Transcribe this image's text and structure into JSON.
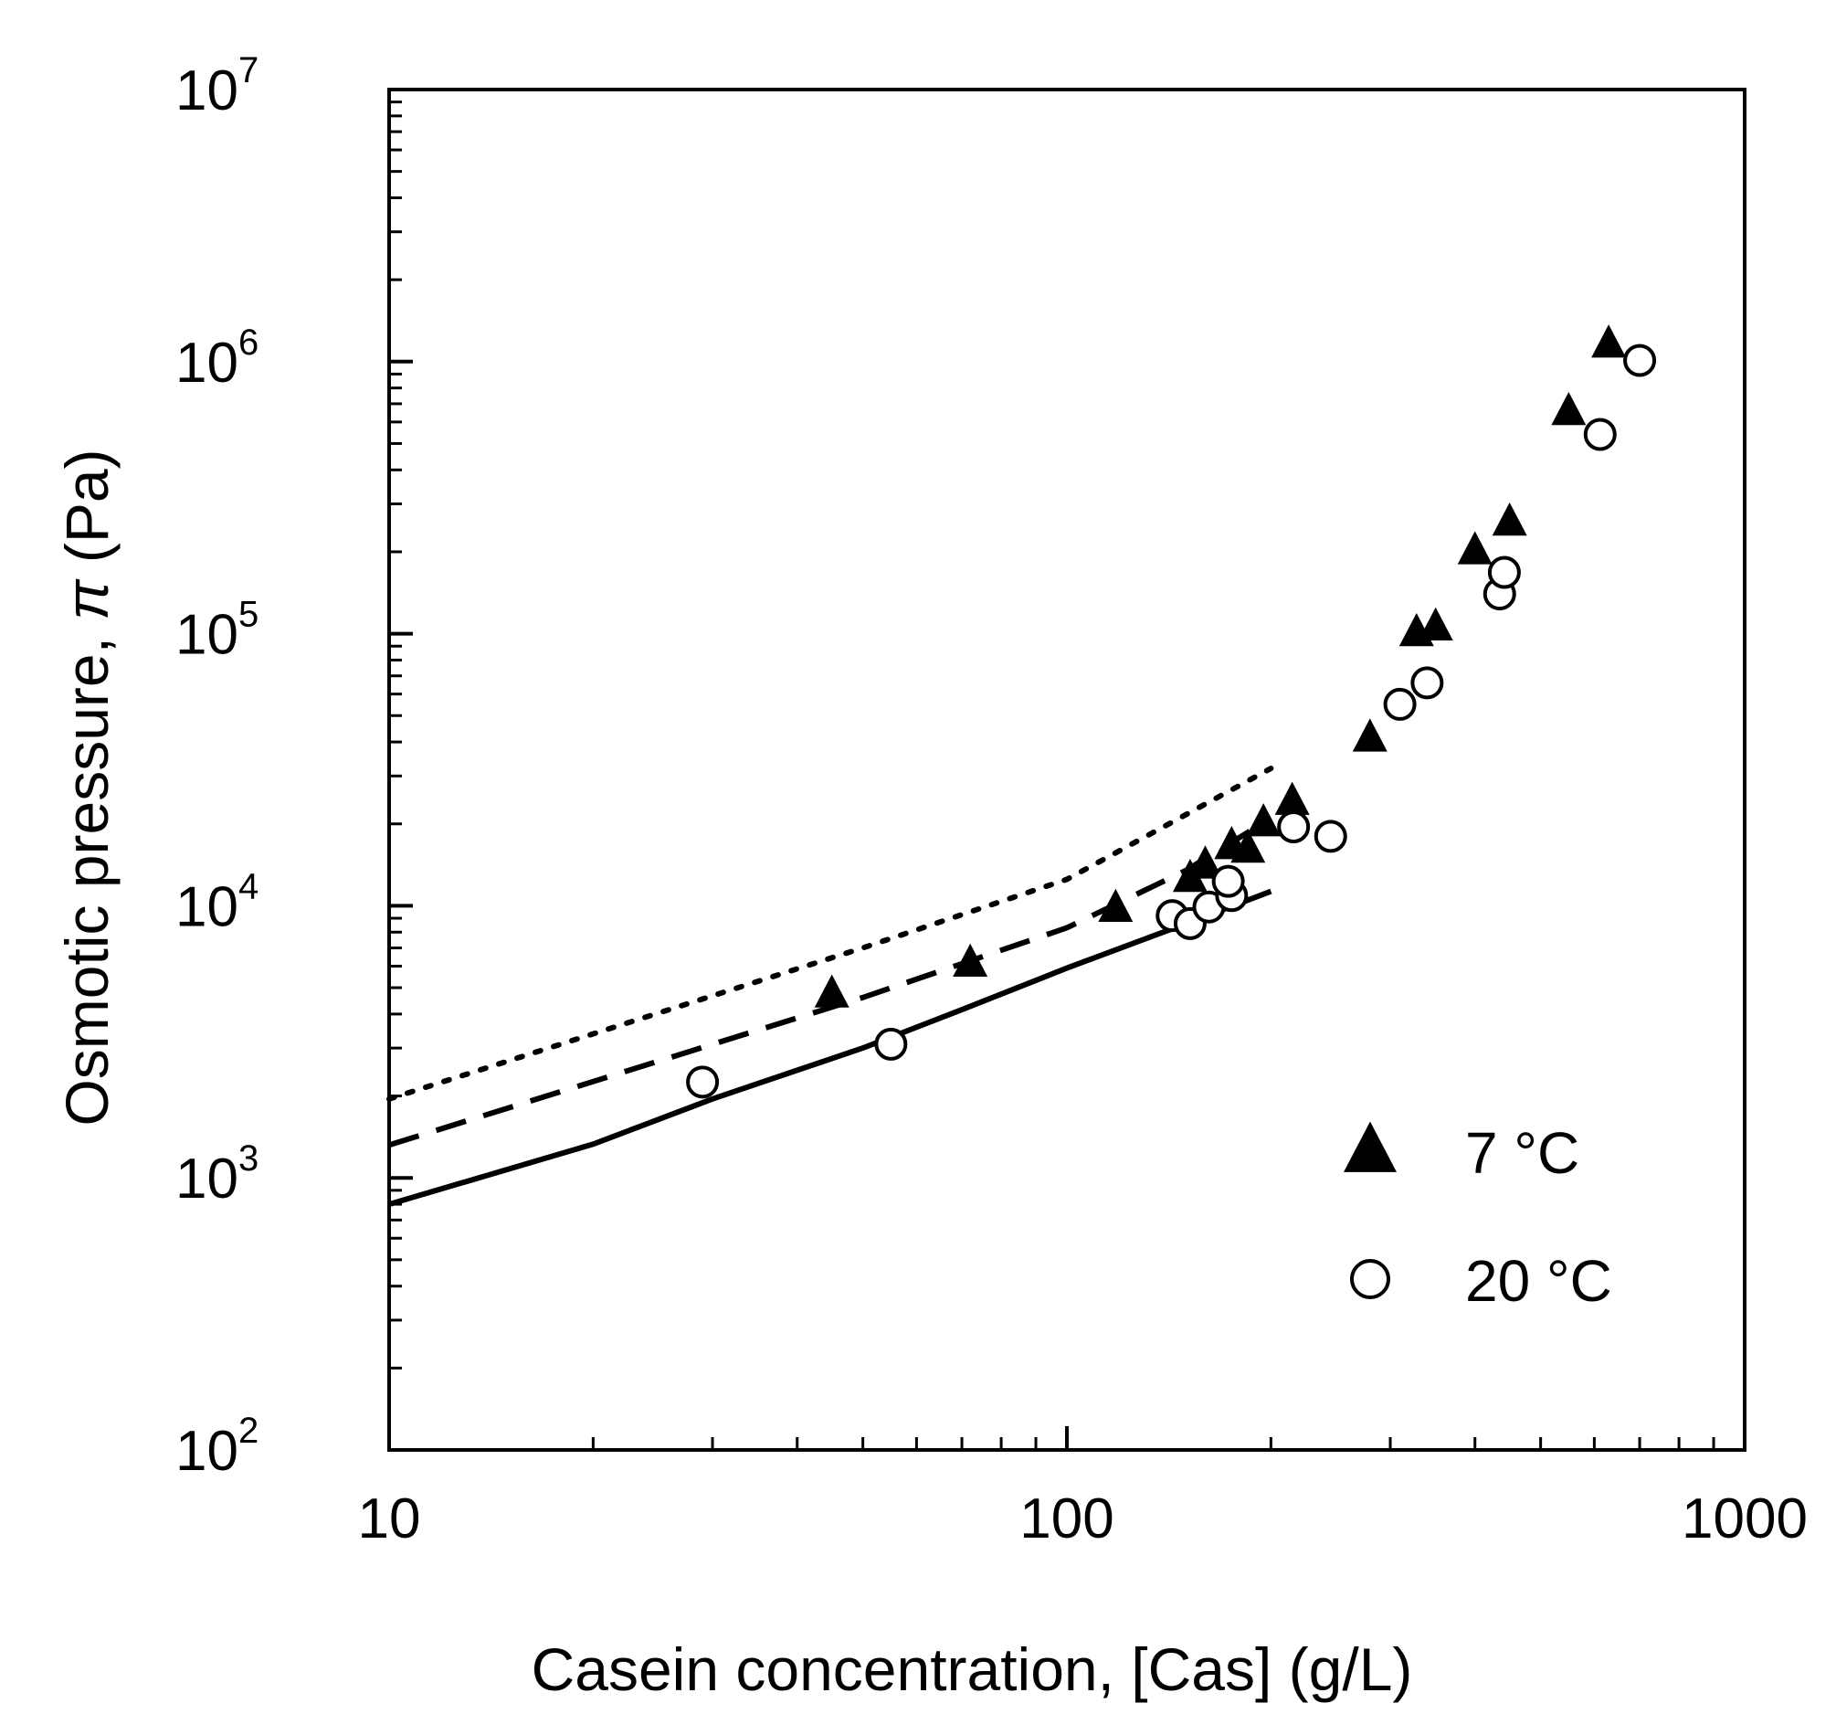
{
  "chart_data": {
    "type": "scatter",
    "title": "",
    "xlabel": "Casein concentration, [Cas] (g/L)",
    "ylabel_prefix": "Osmotic pressure, ",
    "ylabel_symbol": "π",
    "ylabel_suffix": " (Pa)",
    "xscale": "log",
    "yscale": "log",
    "xlim": [
      10,
      1000
    ],
    "ylim": [
      100,
      10000000
    ],
    "grid": false,
    "legend_position": "bottom-right",
    "x_ticks": [
      {
        "value": 10,
        "label": "10"
      },
      {
        "value": 100,
        "label": "100"
      },
      {
        "value": 1000,
        "label": "1000"
      }
    ],
    "y_ticks": [
      {
        "value": 100,
        "base": "10",
        "exp": "2"
      },
      {
        "value": 1000,
        "base": "10",
        "exp": "3"
      },
      {
        "value": 10000,
        "base": "10",
        "exp": "4"
      },
      {
        "value": 100000,
        "base": "10",
        "exp": "5"
      },
      {
        "value": 1000000,
        "base": "10",
        "exp": "6"
      },
      {
        "value": 10000000,
        "base": "10",
        "exp": "7"
      }
    ],
    "series": [
      {
        "name": "7 °C",
        "marker": "filled-triangle",
        "points": [
          {
            "x": 45,
            "y": 4700
          },
          {
            "x": 72,
            "y": 6100
          },
          {
            "x": 118,
            "y": 9700
          },
          {
            "x": 152,
            "y": 12500
          },
          {
            "x": 160,
            "y": 14000
          },
          {
            "x": 175,
            "y": 16500
          },
          {
            "x": 185,
            "y": 16000
          },
          {
            "x": 195,
            "y": 20000
          },
          {
            "x": 215,
            "y": 24000
          },
          {
            "x": 280,
            "y": 41000
          },
          {
            "x": 328,
            "y": 100000
          },
          {
            "x": 350,
            "y": 105000
          },
          {
            "x": 400,
            "y": 200000
          },
          {
            "x": 450,
            "y": 255000
          },
          {
            "x": 550,
            "y": 650000
          },
          {
            "x": 630,
            "y": 1150000
          }
        ]
      },
      {
        "name": "20 °C",
        "marker": "open-circle",
        "points": [
          {
            "x": 29,
            "y": 2250
          },
          {
            "x": 55,
            "y": 3100
          },
          {
            "x": 143,
            "y": 9200
          },
          {
            "x": 152,
            "y": 8600
          },
          {
            "x": 162,
            "y": 9900
          },
          {
            "x": 175,
            "y": 10900
          },
          {
            "x": 173,
            "y": 12300
          },
          {
            "x": 216,
            "y": 19500
          },
          {
            "x": 245,
            "y": 18000
          },
          {
            "x": 310,
            "y": 55000
          },
          {
            "x": 340,
            "y": 66000
          },
          {
            "x": 435,
            "y": 140000
          },
          {
            "x": 442,
            "y": 168000
          },
          {
            "x": 612,
            "y": 540000
          },
          {
            "x": 700,
            "y": 1010000
          }
        ]
      }
    ],
    "lines": [
      {
        "style": "dotted",
        "points": [
          {
            "x": 10,
            "y": 1950
          },
          {
            "x": 50,
            "y": 7000
          },
          {
            "x": 100,
            "y": 12500
          },
          {
            "x": 200,
            "y": 32000
          }
        ]
      },
      {
        "style": "dashed",
        "points": [
          {
            "x": 10,
            "y": 1320
          },
          {
            "x": 50,
            "y": 4600
          },
          {
            "x": 100,
            "y": 8300
          },
          {
            "x": 150,
            "y": 13500
          },
          {
            "x": 200,
            "y": 21000
          }
        ]
      },
      {
        "style": "solid",
        "points": [
          {
            "x": 10,
            "y": 800
          },
          {
            "x": 20,
            "y": 1330
          },
          {
            "x": 30,
            "y": 1950
          },
          {
            "x": 50,
            "y": 3000
          },
          {
            "x": 70,
            "y": 4150
          },
          {
            "x": 100,
            "y": 5900
          },
          {
            "x": 150,
            "y": 8600
          },
          {
            "x": 200,
            "y": 11300
          }
        ]
      }
    ]
  }
}
